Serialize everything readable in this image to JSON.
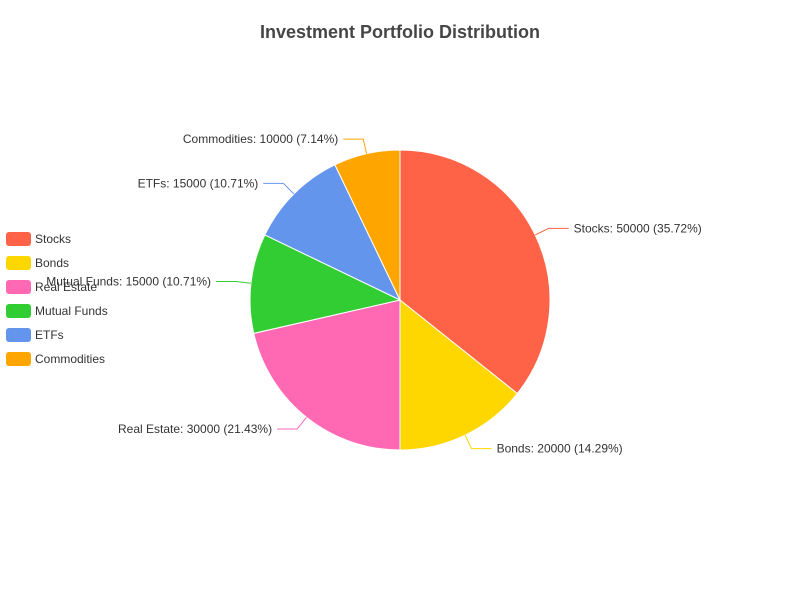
{
  "chart_data": {
    "type": "pie",
    "title": "Investment Portfolio Distribution",
    "legend_position": "left",
    "slices": [
      {
        "name": "Stocks",
        "value": 50000,
        "percent": "35.72%",
        "color": "#FF6347"
      },
      {
        "name": "Bonds",
        "value": 20000,
        "percent": "14.29%",
        "color": "#FFD700"
      },
      {
        "name": "Real Estate",
        "value": 30000,
        "percent": "21.43%",
        "color": "#FF69B4"
      },
      {
        "name": "Mutual Funds",
        "value": 15000,
        "percent": "10.71%",
        "color": "#32CD32"
      },
      {
        "name": "ETFs",
        "value": 15000,
        "percent": "10.71%",
        "color": "#6495ED"
      },
      {
        "name": "Commodities",
        "value": 10000,
        "percent": "7.14%",
        "color": "#FFA500"
      }
    ]
  }
}
